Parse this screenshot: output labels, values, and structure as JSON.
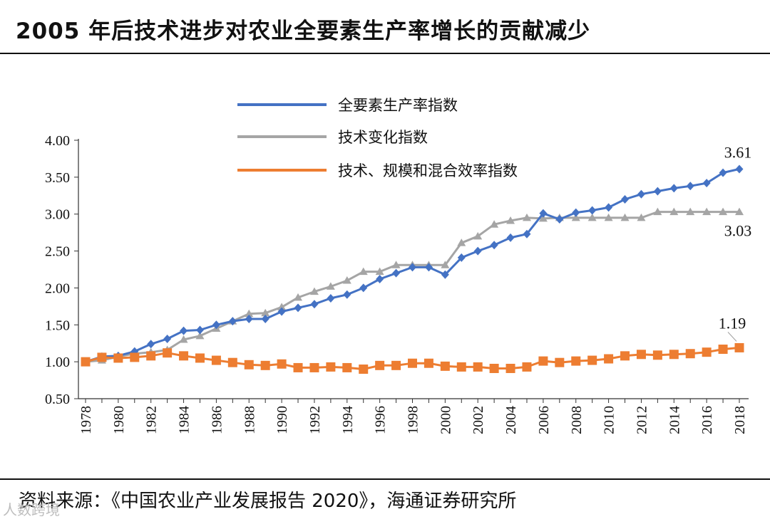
{
  "title": "2005 年后技术进步对农业全要素生产率增长的贡献减少",
  "source": "资料来源：《中国农业产业发展报告 2020》，海通证券研究所",
  "watermark": "人数跨境",
  "chart_data": {
    "type": "line",
    "x": [
      1978,
      1979,
      1980,
      1981,
      1982,
      1983,
      1984,
      1985,
      1986,
      1987,
      1988,
      1989,
      1990,
      1991,
      1992,
      1993,
      1994,
      1995,
      1996,
      1997,
      1998,
      1999,
      2000,
      2001,
      2002,
      2003,
      2004,
      2005,
      2006,
      2007,
      2008,
      2009,
      2010,
      2011,
      2012,
      2013,
      2014,
      2015,
      2016,
      2017,
      2018
    ],
    "x_tick_labels": [
      "1978",
      "1980",
      "1982",
      "1984",
      "1986",
      "1988",
      "1990",
      "1992",
      "1994",
      "1996",
      "1998",
      "2000",
      "2002",
      "2004",
      "2006",
      "2008",
      "2010",
      "2012",
      "2014",
      "2016",
      "2018"
    ],
    "y_tick_labels": [
      "0.50",
      "1.00",
      "1.50",
      "2.00",
      "2.50",
      "3.00",
      "3.50",
      "4.00"
    ],
    "ylim": [
      0.5,
      4.0
    ],
    "legend_position": "top-center",
    "series": [
      {
        "name": "全要素生产率指数",
        "color": "#4472c4",
        "marker": "diamond",
        "values": [
          1.0,
          1.07,
          1.08,
          1.14,
          1.24,
          1.31,
          1.42,
          1.43,
          1.5,
          1.55,
          1.58,
          1.58,
          1.68,
          1.73,
          1.78,
          1.86,
          1.91,
          2.0,
          2.12,
          2.2,
          2.28,
          2.28,
          2.18,
          2.41,
          2.5,
          2.58,
          2.68,
          2.73,
          3.01,
          2.93,
          3.02,
          3.05,
          3.09,
          3.2,
          3.27,
          3.31,
          3.35,
          3.38,
          3.42,
          3.56,
          3.61
        ],
        "end_label": "3.61"
      },
      {
        "name": "技术变化指数",
        "color": "#a5a5a5",
        "marker": "triangle",
        "values": [
          1.0,
          1.02,
          1.07,
          1.11,
          1.13,
          1.16,
          1.3,
          1.35,
          1.45,
          1.55,
          1.65,
          1.66,
          1.74,
          1.87,
          1.95,
          2.02,
          2.1,
          2.22,
          2.22,
          2.31,
          2.31,
          2.31,
          2.31,
          2.61,
          2.7,
          2.86,
          2.91,
          2.95,
          2.94,
          2.95,
          2.95,
          2.95,
          2.95,
          2.95,
          2.95,
          3.03,
          3.03,
          3.03,
          3.03,
          3.03,
          3.03
        ],
        "end_label": "3.03"
      },
      {
        "name": "技术、规模和混合效率指数",
        "color": "#ed7d31",
        "marker": "square",
        "values": [
          1.0,
          1.06,
          1.05,
          1.06,
          1.08,
          1.12,
          1.08,
          1.05,
          1.02,
          0.99,
          0.96,
          0.95,
          0.97,
          0.92,
          0.92,
          0.93,
          0.92,
          0.9,
          0.95,
          0.95,
          0.98,
          0.98,
          0.94,
          0.93,
          0.93,
          0.91,
          0.91,
          0.93,
          1.01,
          0.99,
          1.01,
          1.02,
          1.04,
          1.08,
          1.1,
          1.09,
          1.1,
          1.11,
          1.13,
          1.17,
          1.19
        ],
        "end_label": "1.19"
      }
    ]
  }
}
